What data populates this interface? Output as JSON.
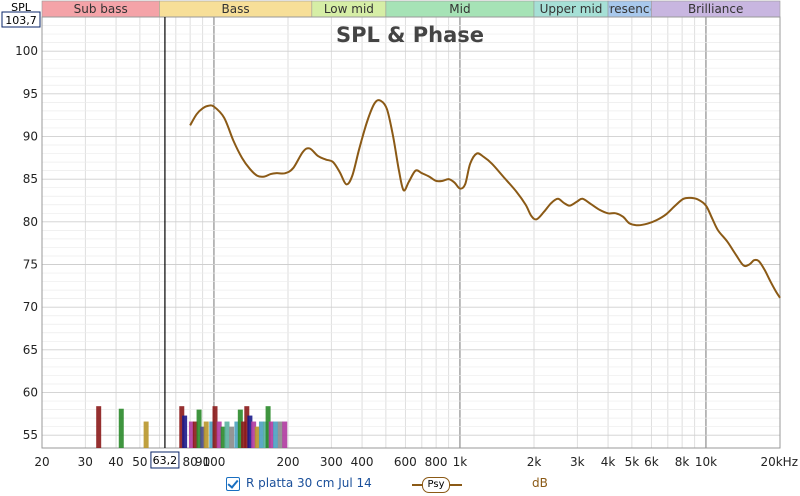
{
  "chart_data": {
    "type": "line",
    "title": "SPL & Phase",
    "y_axis_label": "SPL",
    "y_readout": "103,7",
    "cursor_readout": "63,2",
    "x_unit": "Hz",
    "x_scale": "log",
    "xlim": [
      20,
      20000
    ],
    "ylim": [
      53.5,
      104
    ],
    "y_ticks": [
      55,
      60,
      65,
      70,
      75,
      80,
      85,
      90,
      95,
      100
    ],
    "x_ticks": [
      {
        "value": 20,
        "label": "20"
      },
      {
        "value": 30,
        "label": "30"
      },
      {
        "value": 40,
        "label": "40"
      },
      {
        "value": 50,
        "label": "50"
      },
      {
        "value": 80,
        "label": "80"
      },
      {
        "value": 90,
        "label": "90"
      },
      {
        "value": 100,
        "label": "100"
      },
      {
        "value": 200,
        "label": "200"
      },
      {
        "value": 300,
        "label": "300"
      },
      {
        "value": 400,
        "label": "400"
      },
      {
        "value": 600,
        "label": "600"
      },
      {
        "value": 800,
        "label": "800"
      },
      {
        "value": 1000,
        "label": "1k"
      },
      {
        "value": 2000,
        "label": "2k"
      },
      {
        "value": 3000,
        "label": "3k"
      },
      {
        "value": 4000,
        "label": "4k"
      },
      {
        "value": 5000,
        "label": "5k"
      },
      {
        "value": 6000,
        "label": "6k"
      },
      {
        "value": 8000,
        "label": "8k"
      },
      {
        "value": 10000,
        "label": "10k"
      },
      {
        "value": 20000,
        "label": "20kHz"
      }
    ],
    "grid": true,
    "cursor_x": 63.2,
    "bands": [
      {
        "label": "Sub bass",
        "from": 20,
        "to": 60,
        "color": "#f4a3a8"
      },
      {
        "label": "Bass",
        "from": 60,
        "to": 250,
        "color": "#f7df98"
      },
      {
        "label": "Low mid",
        "from": 250,
        "to": 500,
        "color": "#d6eea6"
      },
      {
        "label": "Mid",
        "from": 500,
        "to": 2000,
        "color": "#a6e3b6"
      },
      {
        "label": "Upper mid",
        "from": 2000,
        "to": 4000,
        "color": "#a6e0d6"
      },
      {
        "label": "Presence",
        "from": 4000,
        "to": 6000,
        "color": "#a8c8ec"
      },
      {
        "label": "Brilliance",
        "from": 6000,
        "to": 20000,
        "color": "#c8b6e0"
      }
    ],
    "series": [
      {
        "name": "R platta 30 cm Jul 14",
        "color": "#8b5a16",
        "smoothing": "Psy",
        "unit": "dB",
        "points": [
          [
            80,
            91.3
          ],
          [
            85,
            92.6
          ],
          [
            90,
            93.3
          ],
          [
            95,
            93.6
          ],
          [
            100,
            93.5
          ],
          [
            110,
            92.2
          ],
          [
            120,
            89.5
          ],
          [
            130,
            87.5
          ],
          [
            140,
            86.2
          ],
          [
            150,
            85.4
          ],
          [
            160,
            85.3
          ],
          [
            170,
            85.6
          ],
          [
            180,
            85.7
          ],
          [
            195,
            85.7
          ],
          [
            210,
            86.3
          ],
          [
            230,
            88.2
          ],
          [
            245,
            88.6
          ],
          [
            265,
            87.7
          ],
          [
            285,
            87.3
          ],
          [
            305,
            87.0
          ],
          [
            325,
            85.8
          ],
          [
            345,
            84.4
          ],
          [
            365,
            85.4
          ],
          [
            390,
            88.6
          ],
          [
            420,
            91.8
          ],
          [
            450,
            93.9
          ],
          [
            475,
            94.2
          ],
          [
            505,
            93.2
          ],
          [
            535,
            90.0
          ],
          [
            565,
            86.0
          ],
          [
            590,
            83.7
          ],
          [
            620,
            84.7
          ],
          [
            660,
            86.0
          ],
          [
            700,
            85.7
          ],
          [
            750,
            85.3
          ],
          [
            800,
            84.8
          ],
          [
            850,
            84.8
          ],
          [
            900,
            85.0
          ],
          [
            950,
            84.6
          ],
          [
            1000,
            83.9
          ],
          [
            1050,
            84.4
          ],
          [
            1100,
            86.8
          ],
          [
            1170,
            88.0
          ],
          [
            1250,
            87.6
          ],
          [
            1350,
            86.8
          ],
          [
            1500,
            85.3
          ],
          [
            1700,
            83.5
          ],
          [
            1850,
            82.0
          ],
          [
            1950,
            80.7
          ],
          [
            2050,
            80.3
          ],
          [
            2200,
            81.2
          ],
          [
            2350,
            82.2
          ],
          [
            2500,
            82.7
          ],
          [
            2650,
            82.2
          ],
          [
            2800,
            81.9
          ],
          [
            3000,
            82.4
          ],
          [
            3150,
            82.7
          ],
          [
            3400,
            82.1
          ],
          [
            3700,
            81.4
          ],
          [
            4000,
            81.0
          ],
          [
            4300,
            81.0
          ],
          [
            4600,
            80.6
          ],
          [
            4900,
            79.8
          ],
          [
            5300,
            79.6
          ],
          [
            5800,
            79.8
          ],
          [
            6300,
            80.2
          ],
          [
            6900,
            80.9
          ],
          [
            7500,
            81.9
          ],
          [
            8100,
            82.7
          ],
          [
            8700,
            82.8
          ],
          [
            9300,
            82.6
          ],
          [
            10000,
            81.9
          ],
          [
            10600,
            80.4
          ],
          [
            11200,
            79.0
          ],
          [
            12200,
            77.7
          ],
          [
            13200,
            76.2
          ],
          [
            14200,
            74.9
          ],
          [
            15000,
            75.0
          ],
          [
            15700,
            75.5
          ],
          [
            16400,
            75.4
          ],
          [
            17300,
            74.4
          ],
          [
            18300,
            73.0
          ],
          [
            19200,
            71.9
          ],
          [
            20000,
            71.1
          ]
        ]
      }
    ],
    "filter_markers": [
      {
        "f": 34,
        "top": 58.4,
        "color": "#8b1a1a"
      },
      {
        "f": 42,
        "top": 58.1,
        "color": "#2a8a2a"
      },
      {
        "f": 53,
        "top": 56.6,
        "color": "#b8962a"
      },
      {
        "f": 74,
        "top": 58.4,
        "color": "#8b1a1a"
      },
      {
        "f": 76,
        "top": 57.3,
        "color": "#1a1a8b"
      },
      {
        "f": 81,
        "top": 56.6,
        "color": "#b03aa0"
      },
      {
        "f": 84,
        "top": 56.6,
        "color": "#8b1a1a"
      },
      {
        "f": 87,
        "top": 58.0,
        "color": "#2a8a2a"
      },
      {
        "f": 90,
        "top": 56.0,
        "color": "#4a4a8b"
      },
      {
        "f": 93,
        "top": 56.6,
        "color": "#b8962a"
      },
      {
        "f": 98,
        "top": 56.6,
        "color": "#4aa0c0"
      },
      {
        "f": 101,
        "top": 58.4,
        "color": "#8b1a1a"
      },
      {
        "f": 105,
        "top": 56.6,
        "color": "#b03aa0"
      },
      {
        "f": 109,
        "top": 56.0,
        "color": "#2a8a2a"
      },
      {
        "f": 113,
        "top": 56.6,
        "color": "#5ab0a0"
      },
      {
        "f": 118,
        "top": 56.0,
        "color": "#8b8b8b"
      },
      {
        "f": 124,
        "top": 56.6,
        "color": "#4aa0c0"
      },
      {
        "f": 128,
        "top": 58.0,
        "color": "#2a8a2a"
      },
      {
        "f": 132,
        "top": 56.6,
        "color": "#8b1a1a"
      },
      {
        "f": 136,
        "top": 58.4,
        "color": "#8b1a1a"
      },
      {
        "f": 140,
        "top": 57.3,
        "color": "#1a1a8b"
      },
      {
        "f": 145,
        "top": 56.6,
        "color": "#b03aa0"
      },
      {
        "f": 150,
        "top": 56.0,
        "color": "#b8962a"
      },
      {
        "f": 156,
        "top": 56.6,
        "color": "#4aa0c0"
      },
      {
        "f": 162,
        "top": 56.6,
        "color": "#5ab0a0"
      },
      {
        "f": 166,
        "top": 58.4,
        "color": "#2a8a2a"
      },
      {
        "f": 171,
        "top": 56.6,
        "color": "#b03aa0"
      },
      {
        "f": 178,
        "top": 56.6,
        "color": "#4aa0c0"
      },
      {
        "f": 186,
        "top": 56.6,
        "color": "#8b8b8b"
      },
      {
        "f": 194,
        "top": 56.6,
        "color": "#b03aa0"
      }
    ]
  },
  "legend": {
    "checked": true,
    "label": "R platta 30 cm Jul 14",
    "smoothing": "Psy",
    "unit": "dB"
  }
}
